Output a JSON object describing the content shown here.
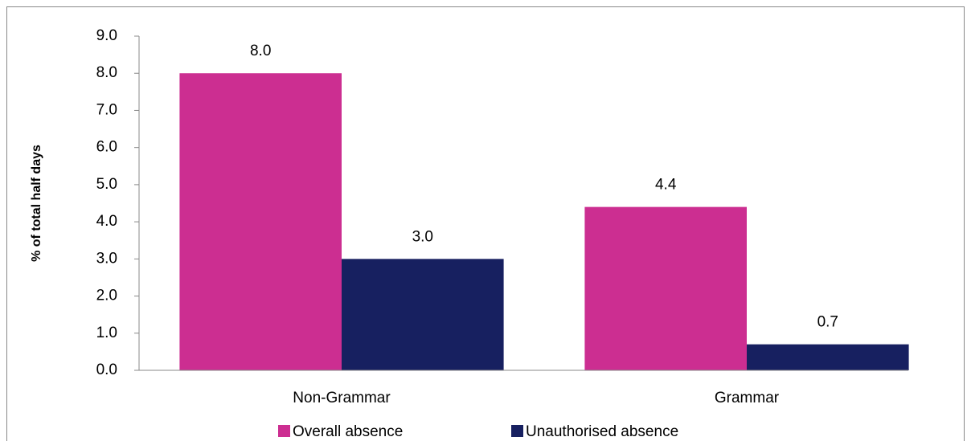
{
  "chart_data": {
    "type": "bar",
    "y_label": "% of total half days",
    "categories": [
      "Non-Grammar",
      "Grammar"
    ],
    "series": [
      {
        "name": "Overall absence",
        "color": "#cc2e91",
        "values": [
          8.0,
          4.4
        ],
        "value_labels": [
          "8.0",
          "4.4"
        ]
      },
      {
        "name": "Unauthorised absence",
        "color": "#172060",
        "values": [
          3.0,
          0.7
        ],
        "value_labels": [
          "3.0",
          "0.7"
        ]
      }
    ],
    "ylim": [
      0,
      9
    ],
    "yticks": [
      {
        "value": 0,
        "label": "0.0"
      },
      {
        "value": 1,
        "label": "1.0"
      },
      {
        "value": 2,
        "label": "2.0"
      },
      {
        "value": 3,
        "label": "3.0"
      },
      {
        "value": 4,
        "label": "4.0"
      },
      {
        "value": 5,
        "label": "5.0"
      },
      {
        "value": 6,
        "label": "6.0"
      },
      {
        "value": 7,
        "label": "7.0"
      },
      {
        "value": 8,
        "label": "8.0"
      },
      {
        "value": 9,
        "label": "9.0"
      }
    ],
    "legend": "bottom"
  }
}
